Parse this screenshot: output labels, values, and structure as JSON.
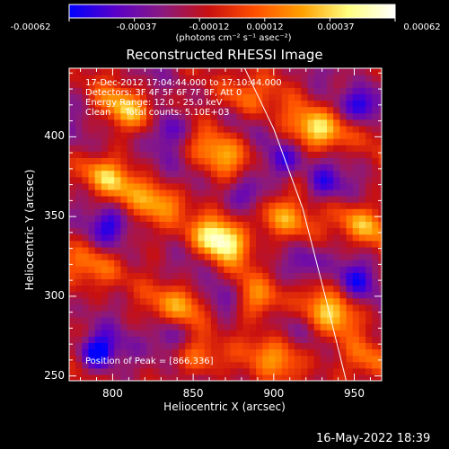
{
  "chart_data": {
    "type": "heatmap",
    "title": "Reconstructed RHESSI Image",
    "xlabel": "Heliocentric X (arcsec)",
    "ylabel": "Heliocentric Y (arcsec)",
    "xlim": [
      773,
      967
    ],
    "ylim": [
      247,
      443
    ],
    "x_ticks": [
      "800",
      "850",
      "900",
      "950"
    ],
    "y_ticks": [
      "400",
      "350",
      "300",
      "250"
    ],
    "colorbar": {
      "ticks": [
        "-0.00062",
        "-0.00037",
        "-0.00012",
        "0.00012",
        "0.00037",
        "0.00062"
      ],
      "range": [
        -0.00062,
        0.00062
      ],
      "unit_label": "(photons cm⁻² s⁻¹ asec⁻²)",
      "colors": [
        "#0000ff",
        "#5a00c8",
        "#8a1a80",
        "#c81010",
        "#ff5000",
        "#ffa000",
        "#ffff80",
        "#ffffff"
      ]
    },
    "annotations": {
      "time_range": "17-Dec-2012 17:04:44.000 to 17:10:44.000",
      "detectors": "Detectors: 3F 4F 5F 6F 7F 8F, Att 0",
      "energy": "Energy Range: 12.0 - 25.0 keV",
      "clean": "Clean     Total counts: 5.10E+03",
      "peak": "Position of Peak = [866,336]"
    },
    "peak_position": [
      866,
      336
    ],
    "limb_curve": [
      [
        882,
        443
      ],
      [
        900,
        405
      ],
      [
        918,
        355
      ],
      [
        932,
        300
      ],
      [
        945,
        247
      ]
    ],
    "hot_spots": [
      {
        "x": 866,
        "y": 336,
        "v": 0.00062
      },
      {
        "x": 928,
        "y": 405,
        "v": 0.00055
      },
      {
        "x": 796,
        "y": 375,
        "v": 0.00042
      },
      {
        "x": 903,
        "y": 348,
        "v": 0.00045
      },
      {
        "x": 830,
        "y": 360,
        "v": 0.0004
      },
      {
        "x": 870,
        "y": 390,
        "v": 0.00035
      },
      {
        "x": 810,
        "y": 418,
        "v": 0.00038
      },
      {
        "x": 845,
        "y": 295,
        "v": 0.0004
      },
      {
        "x": 890,
        "y": 300,
        "v": 0.00035
      },
      {
        "x": 955,
        "y": 345,
        "v": 0.0004
      },
      {
        "x": 936,
        "y": 290,
        "v": 0.00038
      },
      {
        "x": 905,
        "y": 262,
        "v": 0.00036
      },
      {
        "x": 880,
        "y": 425,
        "v": 0.00032
      },
      {
        "x": 790,
        "y": 320,
        "v": 0.0003
      },
      {
        "x": 960,
        "y": 260,
        "v": 0.00035
      },
      {
        "x": 855,
        "y": 262,
        "v": 0.0003
      }
    ],
    "cold_spots": [
      {
        "x": 790,
        "y": 265,
        "v": -0.00062
      },
      {
        "x": 955,
        "y": 420,
        "v": -0.0005
      },
      {
        "x": 905,
        "y": 385,
        "v": -0.0004
      },
      {
        "x": 835,
        "y": 405,
        "v": -0.00038
      },
      {
        "x": 930,
        "y": 370,
        "v": -0.00035
      },
      {
        "x": 800,
        "y": 345,
        "v": -0.00035
      },
      {
        "x": 870,
        "y": 300,
        "v": -0.00032
      },
      {
        "x": 835,
        "y": 275,
        "v": -0.00035
      },
      {
        "x": 885,
        "y": 365,
        "v": -0.0003
      },
      {
        "x": 950,
        "y": 310,
        "v": -0.0003
      },
      {
        "x": 920,
        "y": 320,
        "v": -0.0003
      }
    ],
    "grid": false
  },
  "footer": {
    "date": "16-May-2022 18:39"
  }
}
